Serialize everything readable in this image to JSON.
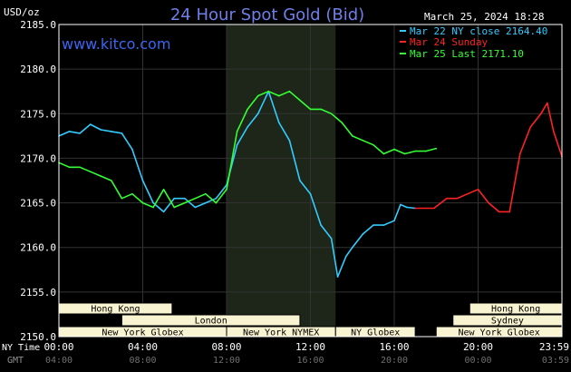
{
  "header": {
    "title": "24 Hour Spot Gold (Bid)",
    "unit_label": "USD/oz",
    "website": "www.kitco.com",
    "date_time": "March 25, 2024 18:28"
  },
  "legend": [
    {
      "label": "Mar 22 NY close 2164.40",
      "color": "#33ccff"
    },
    {
      "label": "Mar 24 Sunday",
      "color": "#ff2222"
    },
    {
      "label": "Mar 25 Last 2171.10",
      "color": "#33ff33"
    }
  ],
  "axis": {
    "y_ticks": [
      "2185.0",
      "2180.0",
      "2175.0",
      "2170.0",
      "2165.0",
      "2160.0",
      "2155.0",
      "2150.0"
    ],
    "x_row1_label": "NY Time",
    "x_row2_label": "GMT",
    "x_ticks_ny": [
      "00:00",
      "04:00",
      "08:00",
      "12:00",
      "16:00",
      "20:00",
      "23:59"
    ],
    "x_ticks_gmt": [
      "04:00",
      "08:00",
      "12:00",
      "16:00",
      "20:00",
      "00:00",
      "03:59"
    ]
  },
  "sessions": [
    {
      "label": "Hong Kong",
      "row": 0,
      "start": 0,
      "end": 5.4
    },
    {
      "label": "Hong Kong",
      "row": 0,
      "start": 19.6,
      "end": 24
    },
    {
      "label": "London",
      "row": 1,
      "start": 3,
      "end": 11.5
    },
    {
      "label": "Sydney",
      "row": 1,
      "start": 18.8,
      "end": 24
    },
    {
      "label": "New York Globex",
      "row": 2,
      "start": 0,
      "end": 8
    },
    {
      "label": "New York NYMEX",
      "row": 2,
      "start": 8,
      "end": 13.2
    },
    {
      "label": "NY Globex",
      "row": 2,
      "start": 13.2,
      "end": 17
    },
    {
      "label": "New York Globex",
      "row": 2,
      "start": 18,
      "end": 24
    }
  ],
  "colors": {
    "background": "#000000",
    "plot_border": "#ffffff",
    "grid": "#333333",
    "nymex_shade": "#1d2619",
    "session_box": "#f8f3d0",
    "mar22": "#33ccff",
    "sunday": "#ff2222",
    "mar25": "#33ff33"
  },
  "chart_data": {
    "type": "line",
    "title": "24 Hour Spot Gold (Bid)",
    "ylabel": "USD/oz",
    "ylim": [
      2150,
      2185
    ],
    "xlim_hours": [
      0,
      24
    ],
    "grid": true,
    "legend_position": "top-right",
    "series": [
      {
        "name": "Mar 22 NY close 2164.40",
        "color": "#33ccff",
        "points": [
          [
            0,
            2172.5
          ],
          [
            0.5,
            2173.0
          ],
          [
            1,
            2172.8
          ],
          [
            1.5,
            2173.8
          ],
          [
            2,
            2173.2
          ],
          [
            2.5,
            2173.0
          ],
          [
            3,
            2172.8
          ],
          [
            3.5,
            2171.0
          ],
          [
            4,
            2167.5
          ],
          [
            4.5,
            2165.0
          ],
          [
            5,
            2164.0
          ],
          [
            5.5,
            2165.5
          ],
          [
            6,
            2165.5
          ],
          [
            6.5,
            2164.5
          ],
          [
            7,
            2165.0
          ],
          [
            7.5,
            2165.5
          ],
          [
            8,
            2167.0
          ],
          [
            8.5,
            2171.5
          ],
          [
            9,
            2173.5
          ],
          [
            9.5,
            2175.0
          ],
          [
            10,
            2177.5
          ],
          [
            10.5,
            2174.0
          ],
          [
            11,
            2172.0
          ],
          [
            11.5,
            2167.5
          ],
          [
            12,
            2166.0
          ],
          [
            12.5,
            2162.5
          ],
          [
            13,
            2161.0
          ],
          [
            13.3,
            2156.7
          ],
          [
            13.7,
            2159.0
          ],
          [
            14,
            2160.0
          ],
          [
            14.5,
            2161.5
          ],
          [
            15,
            2162.5
          ],
          [
            15.5,
            2162.5
          ],
          [
            16,
            2163.0
          ],
          [
            16.3,
            2164.8
          ],
          [
            16.6,
            2164.5
          ],
          [
            17,
            2164.4
          ]
        ]
      },
      {
        "name": "Mar 24 Sunday",
        "color": "#ff2222",
        "points": [
          [
            17,
            2164.4
          ],
          [
            17.9,
            2164.4
          ],
          [
            18.5,
            2165.5
          ],
          [
            19,
            2165.5
          ],
          [
            19.5,
            2166.0
          ],
          [
            20,
            2166.5
          ],
          [
            20.5,
            2165.0
          ],
          [
            21,
            2164.0
          ],
          [
            21.5,
            2164.0
          ],
          [
            22,
            2170.5
          ],
          [
            22.5,
            2173.5
          ],
          [
            23,
            2175.0
          ],
          [
            23.3,
            2176.2
          ],
          [
            23.6,
            2173.0
          ],
          [
            24,
            2170.2
          ]
        ]
      },
      {
        "name": "Mar 25 Last 2171.10",
        "color": "#33ff33",
        "points": [
          [
            0,
            2169.5
          ],
          [
            0.5,
            2169.0
          ],
          [
            1,
            2169.0
          ],
          [
            1.5,
            2168.5
          ],
          [
            2,
            2168.0
          ],
          [
            2.5,
            2167.5
          ],
          [
            3,
            2165.5
          ],
          [
            3.5,
            2166.0
          ],
          [
            4,
            2165.0
          ],
          [
            4.5,
            2164.5
          ],
          [
            5,
            2166.5
          ],
          [
            5.5,
            2164.5
          ],
          [
            6,
            2165.0
          ],
          [
            6.5,
            2165.5
          ],
          [
            7,
            2166.0
          ],
          [
            7.5,
            2165.0
          ],
          [
            8,
            2166.5
          ],
          [
            8.5,
            2173.0
          ],
          [
            9,
            2175.5
          ],
          [
            9.5,
            2177.0
          ],
          [
            10,
            2177.5
          ],
          [
            10.5,
            2177.0
          ],
          [
            11,
            2177.5
          ],
          [
            11.5,
            2176.5
          ],
          [
            12,
            2175.5
          ],
          [
            12.5,
            2175.5
          ],
          [
            13,
            2175.0
          ],
          [
            13.5,
            2174.0
          ],
          [
            14,
            2172.5
          ],
          [
            14.5,
            2172.0
          ],
          [
            15,
            2171.5
          ],
          [
            15.5,
            2170.5
          ],
          [
            16,
            2171.0
          ],
          [
            16.5,
            2170.5
          ],
          [
            17,
            2170.8
          ],
          [
            17.5,
            2170.8
          ],
          [
            18,
            2171.1
          ]
        ]
      }
    ]
  }
}
